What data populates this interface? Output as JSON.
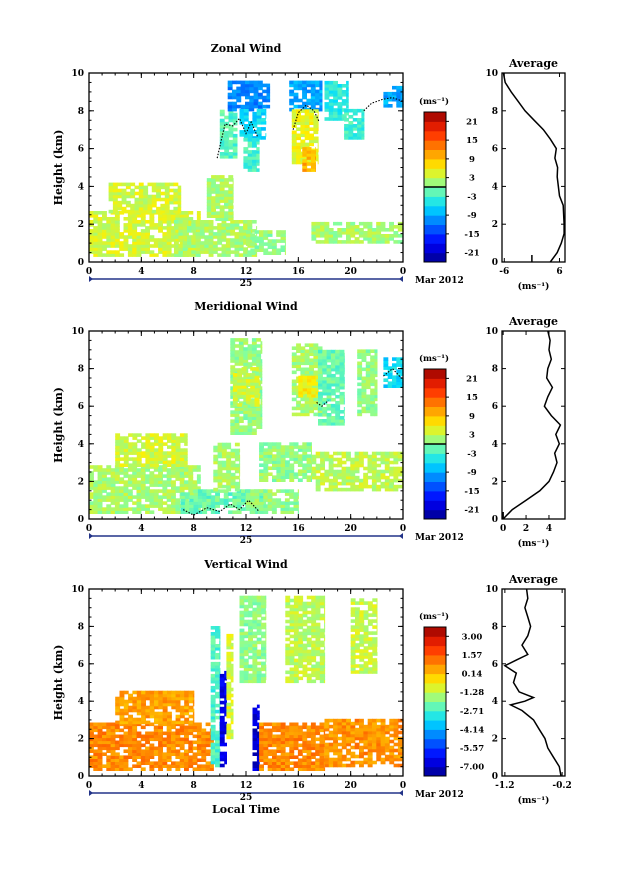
{
  "chart_data": [
    {
      "type": "heatmap",
      "title": "Zonal Wind",
      "ylabel": "Height (km)",
      "xlabel": "",
      "x_ticks": [
        "0",
        "4",
        "8",
        "12",
        "16",
        "20",
        "0"
      ],
      "y_ticks": [
        "0",
        "2",
        "4",
        "6",
        "8",
        "10"
      ],
      "ylim": [
        0,
        10
      ],
      "date_day": "25",
      "date_month": "Mar 2012",
      "colorbar": {
        "unit": "(ms⁻¹)",
        "ticks": [
          "21",
          "15",
          "9",
          "3",
          "-3",
          "-9",
          "-15",
          "-21"
        ],
        "range": [
          -24,
          24
        ],
        "zero_line": true
      },
      "regions": [
        {
          "t0": 0.0,
          "t1": 8.5,
          "h0": 0.3,
          "h1": 2.6,
          "v": 4
        },
        {
          "t0": 1.5,
          "t1": 7.0,
          "h0": 2.6,
          "h1": 4.2,
          "v": 4
        },
        {
          "t0": 6.5,
          "t1": 12.8,
          "h0": 0.3,
          "h1": 2.2,
          "v": 2
        },
        {
          "t0": 9.0,
          "t1": 11.0,
          "h0": 2.2,
          "h1": 4.5,
          "v": 2
        },
        {
          "t0": 10.0,
          "t1": 11.3,
          "h0": 5.5,
          "h1": 8.0,
          "v": -2
        },
        {
          "t0": 10.6,
          "t1": 13.8,
          "h0": 8.0,
          "h1": 9.5,
          "v": -11
        },
        {
          "t0": 11.5,
          "t1": 13.5,
          "h0": 6.5,
          "h1": 8.0,
          "v": -6
        },
        {
          "t0": 11.8,
          "t1": 13.0,
          "h0": 4.8,
          "h1": 6.5,
          "v": -3
        },
        {
          "t0": 15.3,
          "t1": 17.8,
          "h0": 8.0,
          "h1": 9.5,
          "v": -9
        },
        {
          "t0": 15.5,
          "t1": 17.5,
          "h0": 5.2,
          "h1": 8.0,
          "v": 5
        },
        {
          "t0": 16.3,
          "t1": 17.3,
          "h0": 4.8,
          "h1": 6.0,
          "v": 10
        },
        {
          "t0": 18.0,
          "t1": 19.8,
          "h0": 7.5,
          "h1": 9.5,
          "v": -4
        },
        {
          "t0": 22.5,
          "t1": 24.0,
          "h0": 8.2,
          "h1": 9.3,
          "v": -9
        },
        {
          "t0": 19.5,
          "t1": 21.0,
          "h0": 6.5,
          "h1": 8.0,
          "v": -3
        },
        {
          "t0": 12.0,
          "t1": 15.0,
          "h0": 0.4,
          "h1": 1.6,
          "v": 1
        },
        {
          "t0": 17.0,
          "t1": 24.0,
          "h0": 1.0,
          "h1": 2.0,
          "v": 2
        }
      ],
      "zero_contours": [
        [
          [
            9.8,
            5.5
          ],
          [
            10.1,
            6.4
          ],
          [
            10.4,
            7.3
          ],
          [
            11.0,
            7.2
          ],
          [
            11.5,
            7.6
          ],
          [
            12.0,
            6.8
          ],
          [
            12.4,
            7.4
          ],
          [
            12.9,
            6.6
          ]
        ],
        [
          [
            15.6,
            7.0
          ],
          [
            16.0,
            7.9
          ],
          [
            16.6,
            8.3
          ],
          [
            17.2,
            8.0
          ],
          [
            17.6,
            7.4
          ]
        ],
        [
          [
            21.0,
            8.0
          ],
          [
            21.6,
            8.4
          ],
          [
            22.4,
            8.6
          ],
          [
            23.2,
            8.7
          ],
          [
            24.0,
            8.5
          ]
        ]
      ],
      "profile": {
        "title": "Average",
        "unit": "(ms⁻¹)",
        "x_ticks": [
          -6,
          6
        ],
        "xlim": [
          -6.5,
          7.2
        ],
        "y_ticks": [
          "0",
          "2",
          "4",
          "6",
          "8",
          "10"
        ],
        "ylim": [
          0,
          10
        ],
        "zero_marker": true,
        "points": [
          [
            4.0,
            0.0
          ],
          [
            5.5,
            0.5
          ],
          [
            6.4,
            1.0
          ],
          [
            7.0,
            1.5
          ],
          [
            7.0,
            2.0
          ],
          [
            6.8,
            3.0
          ],
          [
            6.0,
            3.5
          ],
          [
            5.5,
            4.5
          ],
          [
            5.6,
            5.0
          ],
          [
            5.0,
            5.5
          ],
          [
            5.3,
            6.0
          ],
          [
            4.0,
            6.5
          ],
          [
            2.5,
            7.0
          ],
          [
            0.5,
            7.5
          ],
          [
            -1.5,
            8.0
          ],
          [
            -3.0,
            8.5
          ],
          [
            -4.5,
            9.0
          ],
          [
            -5.8,
            9.5
          ],
          [
            -6.2,
            10.0
          ]
        ]
      }
    },
    {
      "type": "heatmap",
      "title": "Meridional Wind",
      "ylabel": "Height (km)",
      "xlabel": "",
      "x_ticks": [
        "0",
        "4",
        "8",
        "12",
        "16",
        "20",
        "0"
      ],
      "y_ticks": [
        "0",
        "2",
        "4",
        "6",
        "8",
        "10"
      ],
      "ylim": [
        0,
        10
      ],
      "date_day": "25",
      "date_month": "Mar 2012",
      "colorbar": {
        "unit": "(ms⁻¹)",
        "ticks": [
          "21",
          "15",
          "9",
          "3",
          "-3",
          "-9",
          "-15",
          "-21"
        ],
        "range": [
          -24,
          24
        ],
        "zero_line": true
      },
      "regions": [
        {
          "t0": 0.0,
          "t1": 8.5,
          "h0": 0.3,
          "h1": 2.8,
          "v": 2
        },
        {
          "t0": 2.0,
          "t1": 7.5,
          "h0": 2.8,
          "h1": 4.5,
          "v": 4
        },
        {
          "t0": 7.0,
          "t1": 13.5,
          "h0": 0.3,
          "h1": 1.5,
          "v": -1
        },
        {
          "t0": 9.5,
          "t1": 11.5,
          "h0": 1.5,
          "h1": 4.0,
          "v": 2
        },
        {
          "t0": 12.0,
          "t1": 16.0,
          "h0": 0.3,
          "h1": 1.5,
          "v": 1
        },
        {
          "t0": 10.8,
          "t1": 13.2,
          "h0": 4.5,
          "h1": 9.5,
          "v": 1
        },
        {
          "t0": 11.0,
          "t1": 13.0,
          "h0": 6.0,
          "h1": 8.0,
          "v": 4
        },
        {
          "t0": 15.5,
          "t1": 17.8,
          "h0": 5.5,
          "h1": 9.2,
          "v": 2
        },
        {
          "t0": 16.0,
          "t1": 17.5,
          "h0": 6.5,
          "h1": 7.5,
          "v": 6
        },
        {
          "t0": 17.5,
          "t1": 19.5,
          "h0": 5.0,
          "h1": 9.0,
          "v": -1
        },
        {
          "t0": 20.5,
          "t1": 22.0,
          "h0": 5.5,
          "h1": 9.0,
          "v": 1
        },
        {
          "t0": 22.5,
          "t1": 24.0,
          "h0": 7.0,
          "h1": 8.5,
          "v": -6
        },
        {
          "t0": 17.0,
          "t1": 24.0,
          "h0": 1.5,
          "h1": 3.5,
          "v": 3
        },
        {
          "t0": 13.0,
          "t1": 17.0,
          "h0": 2.0,
          "h1": 4.0,
          "v": 1
        }
      ],
      "zero_contours": [
        [
          [
            7.2,
            0.5
          ],
          [
            8.0,
            0.2
          ],
          [
            9.0,
            0.6
          ],
          [
            10.0,
            0.4
          ],
          [
            10.8,
            0.8
          ],
          [
            11.5,
            0.5
          ],
          [
            12.2,
            1.0
          ],
          [
            13.0,
            0.4
          ]
        ],
        [
          [
            17.4,
            6.2
          ],
          [
            17.8,
            6.0
          ],
          [
            18.3,
            6.3
          ]
        ],
        [
          [
            22.5,
            7.6
          ],
          [
            23.2,
            8.0
          ],
          [
            24.0,
            7.4
          ]
        ]
      ],
      "profile": {
        "title": "Average",
        "unit": "(ms⁻¹)",
        "x_ticks": [
          0,
          2,
          4
        ],
        "xlim": [
          -0.1,
          5.4
        ],
        "y_ticks": [
          "0",
          "2",
          "4",
          "6",
          "8",
          "10"
        ],
        "ylim": [
          0,
          10
        ],
        "zero_marker": true,
        "points": [
          [
            0.0,
            0.0
          ],
          [
            0.8,
            0.5
          ],
          [
            2.0,
            1.0
          ],
          [
            3.2,
            1.5
          ],
          [
            4.0,
            2.0
          ],
          [
            4.4,
            2.5
          ],
          [
            4.7,
            3.0
          ],
          [
            4.5,
            3.5
          ],
          [
            4.9,
            4.0
          ],
          [
            4.6,
            4.5
          ],
          [
            5.0,
            5.0
          ],
          [
            4.2,
            5.5
          ],
          [
            3.6,
            6.0
          ],
          [
            3.9,
            6.5
          ],
          [
            4.3,
            7.0
          ],
          [
            3.8,
            7.5
          ],
          [
            3.9,
            8.0
          ],
          [
            4.2,
            8.5
          ],
          [
            4.0,
            9.0
          ],
          [
            4.1,
            9.5
          ],
          [
            3.9,
            10.0
          ]
        ]
      }
    },
    {
      "type": "heatmap",
      "title": "Vertical Wind",
      "ylabel": "Height (km)",
      "xlabel": "Local Time",
      "x_ticks": [
        "0",
        "4",
        "8",
        "12",
        "16",
        "20",
        "0"
      ],
      "y_ticks": [
        "0",
        "2",
        "4",
        "6",
        "8",
        "10"
      ],
      "ylim": [
        0,
        10
      ],
      "date_day": "25",
      "date_month": "Mar 2012",
      "colorbar": {
        "unit": "(ms⁻¹)",
        "ticks": [
          "3.00",
          "1.57",
          "0.14",
          "-1.28",
          "-2.71",
          "-4.14",
          "-5.57",
          "-7.00"
        ],
        "range": [
          -7.7,
          3.7
        ],
        "zero_line": false
      },
      "regions": [
        {
          "t0": 0.0,
          "t1": 9.5,
          "h0": 0.3,
          "h1": 2.8,
          "v": 0.9
        },
        {
          "t0": 2.0,
          "t1": 8.0,
          "h0": 2.8,
          "h1": 4.5,
          "v": 0.6
        },
        {
          "t0": 9.3,
          "t1": 10.0,
          "h0": 0.5,
          "h1": 8.0,
          "v": -2.6
        },
        {
          "t0": 10.0,
          "t1": 10.5,
          "h0": 0.5,
          "h1": 5.5,
          "v": -6.5
        },
        {
          "t0": 10.5,
          "t1": 11.0,
          "h0": 2.0,
          "h1": 7.5,
          "v": -1.0
        },
        {
          "t0": 11.5,
          "t1": 13.5,
          "h0": 5.0,
          "h1": 9.5,
          "v": -1.8
        },
        {
          "t0": 12.5,
          "t1": 13.0,
          "h0": 0.3,
          "h1": 3.8,
          "v": -6.8
        },
        {
          "t0": 13.0,
          "t1": 18.0,
          "h0": 0.3,
          "h1": 2.8,
          "v": 0.9
        },
        {
          "t0": 15.0,
          "t1": 18.0,
          "h0": 5.0,
          "h1": 9.5,
          "v": -1.3
        },
        {
          "t0": 20.0,
          "t1": 22.0,
          "h0": 5.5,
          "h1": 9.5,
          "v": -1.2
        },
        {
          "t0": 18.0,
          "t1": 24.0,
          "h0": 0.5,
          "h1": 3.0,
          "v": 0.8
        }
      ],
      "zero_contours": [],
      "profile": {
        "title": "Average",
        "unit": "(ms⁻¹)",
        "x_ticks": [
          -1.2,
          -0.2
        ],
        "xlim": [
          -1.25,
          -0.15
        ],
        "y_ticks": [
          "0",
          "2",
          "4",
          "6",
          "8",
          "10"
        ],
        "ylim": [
          0,
          10
        ],
        "zero_marker": false,
        "points": [
          [
            -0.22,
            0.0
          ],
          [
            -0.25,
            0.5
          ],
          [
            -0.35,
            1.0
          ],
          [
            -0.45,
            1.5
          ],
          [
            -0.5,
            2.0
          ],
          [
            -0.6,
            2.5
          ],
          [
            -0.7,
            3.0
          ],
          [
            -0.9,
            3.5
          ],
          [
            -1.1,
            3.8
          ],
          [
            -0.85,
            4.0
          ],
          [
            -0.7,
            4.2
          ],
          [
            -0.95,
            4.5
          ],
          [
            -1.05,
            5.0
          ],
          [
            -1.0,
            5.5
          ],
          [
            -1.2,
            5.9
          ],
          [
            -1.0,
            6.2
          ],
          [
            -0.8,
            6.5
          ],
          [
            -0.9,
            7.0
          ],
          [
            -0.8,
            7.5
          ],
          [
            -0.75,
            8.0
          ],
          [
            -0.8,
            8.5
          ],
          [
            -0.85,
            9.0
          ],
          [
            -0.8,
            9.5
          ],
          [
            -0.82,
            10.0
          ]
        ]
      }
    }
  ]
}
